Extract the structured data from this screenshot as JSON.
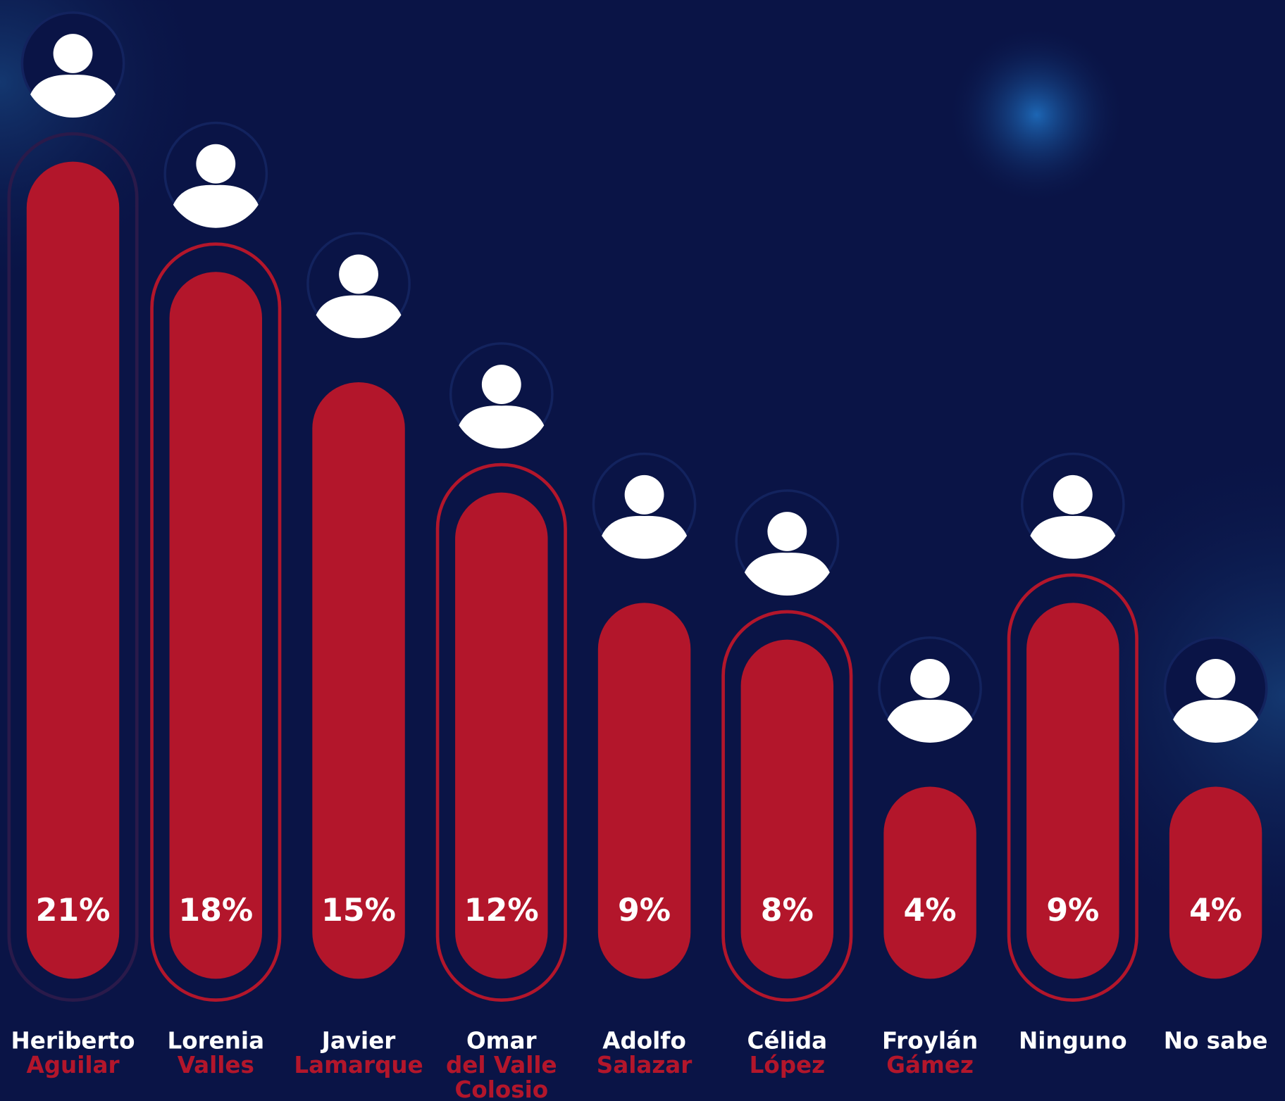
{
  "chart_data": {
    "type": "bar",
    "categories": [
      [
        "Heriberto",
        "Aguilar"
      ],
      [
        "Lorenia",
        "Valles"
      ],
      [
        "Javier",
        "Lamarque"
      ],
      [
        "Omar",
        "del Valle",
        "Colosio"
      ],
      [
        "Adolfo",
        "Salazar"
      ],
      [
        "Célida",
        "López"
      ],
      [
        "Froylán",
        "Gámez"
      ],
      [
        "Ninguno"
      ],
      [
        "No sabe"
      ]
    ],
    "values": [
      21,
      18,
      15,
      12,
      9,
      8,
      4,
      9,
      4
    ],
    "value_labels": [
      "21%",
      "18%",
      "15%",
      "12%",
      "9%",
      "8%",
      "4%",
      "9%",
      "4%"
    ],
    "color": "#b3162b"
  }
}
